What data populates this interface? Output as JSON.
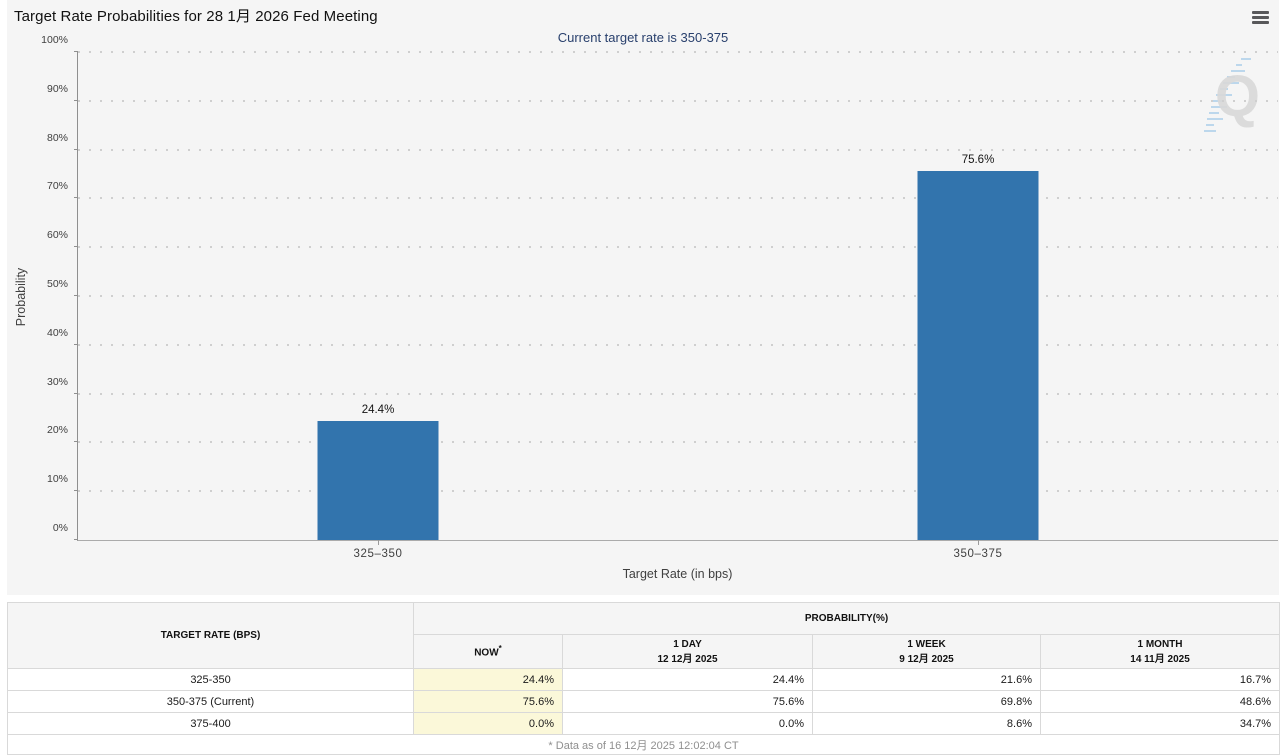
{
  "header": {
    "menu_icon": "hamburger-icon"
  },
  "chart_data": {
    "type": "bar",
    "title": "Target Rate Probabilities for 28 1月 2026 Fed Meeting",
    "subtitle": "Current target rate is 350-375",
    "categories": [
      "325–350",
      "350–375"
    ],
    "values": [
      24.4,
      75.6
    ],
    "value_labels": [
      "24.4%",
      "75.6%"
    ],
    "xlabel": "Target Rate (in bps)",
    "ylabel": "Probability",
    "ylim": [
      0,
      100
    ],
    "ytick_step": 10,
    "yticks": [
      "0%",
      "10%",
      "20%",
      "30%",
      "40%",
      "50%",
      "60%",
      "70%",
      "80%",
      "90%",
      "100%"
    ],
    "grid": "dotted-horizontal",
    "legend": "none",
    "bar_color": "#3274ad"
  },
  "watermark": {
    "letter": "Q"
  },
  "table": {
    "col1_header": "TARGET RATE (BPS)",
    "group_header": "PROBABILITY(%)",
    "columns": [
      {
        "label": "NOW",
        "sup": "*",
        "sub": ""
      },
      {
        "label": "1 DAY",
        "sub": "12 12月 2025"
      },
      {
        "label": "1 WEEK",
        "sub": "9 12月 2025"
      },
      {
        "label": "1 MONTH",
        "sub": "14 11月 2025"
      }
    ],
    "rows": [
      [
        "325-350",
        "24.4%",
        "24.4%",
        "21.6%",
        "16.7%"
      ],
      [
        "350-375 (Current)",
        "75.6%",
        "75.6%",
        "69.8%",
        "48.6%"
      ],
      [
        "375-400",
        "0.0%",
        "0.0%",
        "8.6%",
        "34.7%"
      ]
    ],
    "footnote": "* Data as of 16 12月 2025 12:02:04 CT"
  },
  "colors": {
    "panel_bg": "#f5f5f5",
    "bar": "#3274ad",
    "subtitle": "#29406d",
    "now_column_bg": "#fbf8d9",
    "table_border": "#d9d9d9",
    "footnote_text": "#8f8f8f"
  }
}
